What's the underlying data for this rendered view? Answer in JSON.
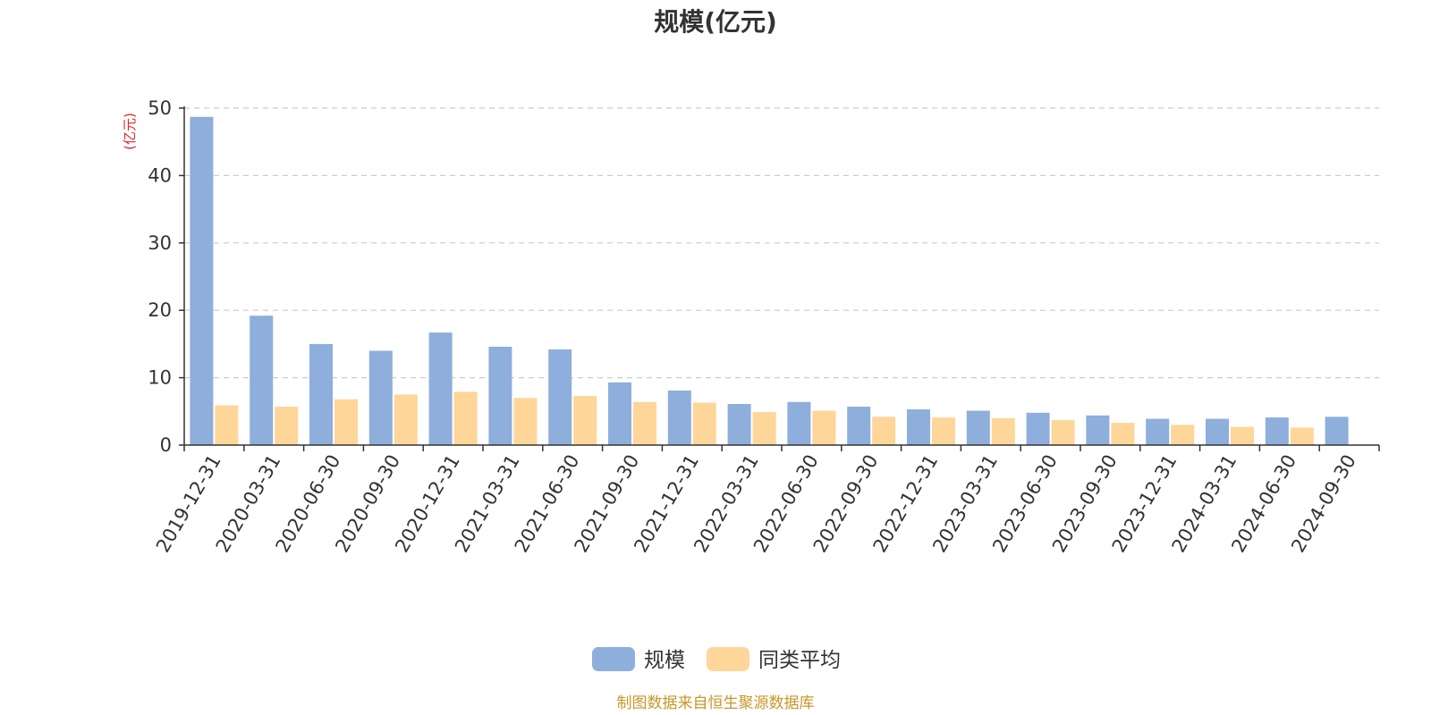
{
  "chart_data": {
    "type": "bar",
    "title": "规模(亿元)",
    "ylabel": "(亿元)",
    "xlabel": "",
    "ylim": [
      0,
      50
    ],
    "yticks": [
      0,
      10,
      20,
      30,
      40,
      50
    ],
    "grid": true,
    "legend_position": "bottom-center",
    "categories": [
      "2019-12-31",
      "2020-03-31",
      "2020-06-30",
      "2020-09-30",
      "2020-12-31",
      "2021-03-31",
      "2021-06-30",
      "2021-09-30",
      "2021-12-31",
      "2022-03-31",
      "2022-06-30",
      "2022-09-30",
      "2022-12-31",
      "2023-03-31",
      "2023-06-30",
      "2023-09-30",
      "2023-12-31",
      "2024-03-31",
      "2024-06-30",
      "2024-09-30"
    ],
    "series": [
      {
        "name": "规模",
        "color": "#8eaedb",
        "values": [
          48.7,
          19.2,
          15.0,
          14.0,
          16.7,
          14.6,
          14.2,
          9.3,
          8.1,
          6.1,
          6.4,
          5.7,
          5.3,
          5.1,
          4.8,
          4.4,
          3.9,
          3.9,
          4.1,
          4.2
        ]
      },
      {
        "name": "同类平均",
        "color": "#fed699",
        "values": [
          5.9,
          5.7,
          6.8,
          7.5,
          7.9,
          7.0,
          7.3,
          6.4,
          6.3,
          4.9,
          5.1,
          4.2,
          4.1,
          4.0,
          3.7,
          3.3,
          3.0,
          2.7,
          2.6,
          null
        ]
      }
    ],
    "source": "制图数据来自恒生聚源数据库"
  }
}
